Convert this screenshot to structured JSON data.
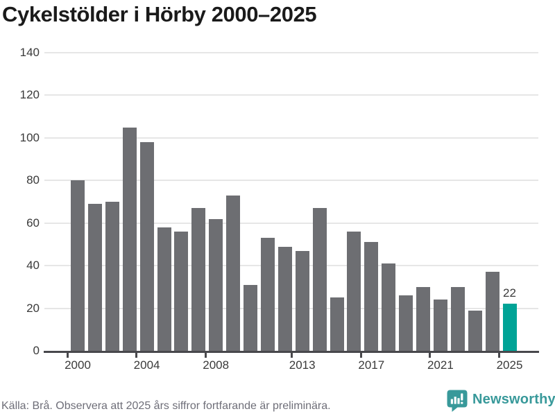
{
  "title": "Cykelstölder i Hörby 2000–2025",
  "source_note": "Källa: Brå. Observera att 2025 års siffror fortfarande är preliminära.",
  "branding": {
    "wordmark": "Newsworthy",
    "icon": "newsworthy-speech-bubble-bar-chart-icon",
    "color": "#38999a"
  },
  "colors": {
    "bar": "#6d6e72",
    "highlight_bar": "#00a396",
    "gridline": "#e6e6e6",
    "axis": "#48484c",
    "title_text": "#1a1a1a",
    "tick_text": "#3a3a3a",
    "footer_text": "#6e6e78",
    "background": "#ffffff"
  },
  "chart_data": {
    "type": "bar",
    "title": "Cykelstölder i Hörby 2000–2025",
    "categories": [
      2000,
      2001,
      2002,
      2003,
      2004,
      2005,
      2006,
      2007,
      2008,
      2009,
      2010,
      2011,
      2012,
      2013,
      2014,
      2015,
      2016,
      2017,
      2018,
      2019,
      2020,
      2021,
      2022,
      2023,
      2024,
      2025
    ],
    "values": [
      80,
      69,
      70,
      105,
      98,
      58,
      56,
      67,
      62,
      73,
      31,
      53,
      49,
      47,
      67,
      25,
      56,
      51,
      41,
      26,
      30,
      24,
      30,
      19,
      37,
      22
    ],
    "highlight": {
      "category": 2025,
      "value": 22,
      "label": "22"
    },
    "x_tick_labels": [
      "2000",
      "2004",
      "2008",
      "2013",
      "2017",
      "2021",
      "2025"
    ],
    "y_ticks": [
      0,
      20,
      40,
      60,
      80,
      100,
      120,
      140
    ],
    "ylim": [
      0,
      140
    ],
    "grid": "horizontal-only",
    "legend": "none"
  }
}
